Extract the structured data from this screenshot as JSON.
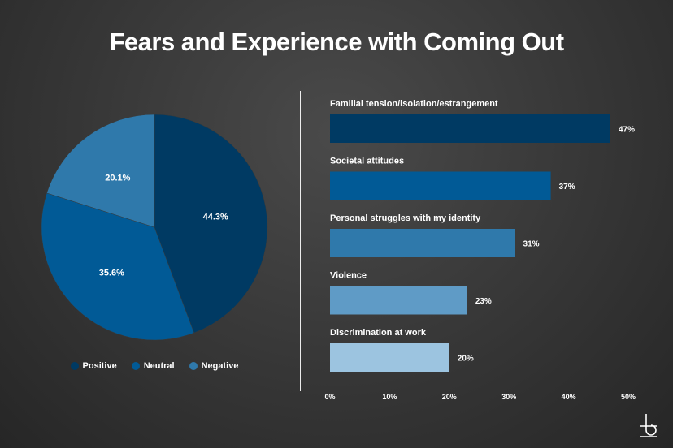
{
  "title": "Fears and Experience with Coming Out",
  "chart_data": [
    {
      "type": "pie",
      "legend_position": "bottom",
      "slices": [
        {
          "label": "Positive",
          "value": 44.3,
          "display": "44.3%",
          "color": "#003a63"
        },
        {
          "label": "Neutral",
          "value": 35.6,
          "display": "35.6%",
          "color": "#015a96"
        },
        {
          "label": "Negative",
          "value": 20.1,
          "display": "20.1%",
          "color": "#2f79ab"
        }
      ]
    },
    {
      "type": "bar",
      "orientation": "horizontal",
      "categories": [
        "Familial tension/isolation/estrangement",
        "Societal attitudes",
        "Personal struggles with my identity",
        "Violence",
        "Discrimination at work"
      ],
      "values": [
        47,
        37,
        31,
        23,
        20
      ],
      "value_labels": [
        "47%",
        "37%",
        "31%",
        "23%",
        "20%"
      ],
      "colors": [
        "#003a63",
        "#015a96",
        "#2f79ab",
        "#5f9bc6",
        "#9cc4e0"
      ],
      "xlim": [
        0,
        50
      ],
      "xticks": [
        0,
        10,
        20,
        30,
        40,
        50
      ],
      "xtick_labels": [
        "0%",
        "10%",
        "20%",
        "30%",
        "40%",
        "50%"
      ],
      "grid": false
    }
  ],
  "logo_icon": "brand-b-icon"
}
